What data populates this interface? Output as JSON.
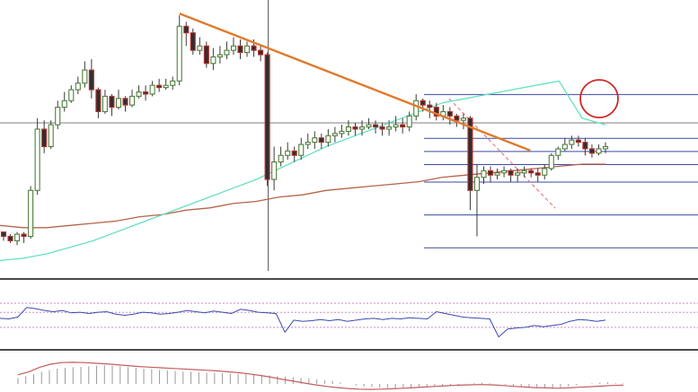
{
  "chart_data": [
    {
      "type": "candlestick",
      "panel": "price",
      "title": "",
      "xlabel": "",
      "ylabel": "",
      "grid": false,
      "ylim": [
        0,
        100
      ],
      "colors": {
        "candle_up": "#4f7f3b",
        "candle_down": "#b8312f",
        "candle_body_border": "#2d2d2d",
        "trendline": "#e07b2e",
        "fib_lines": "#3a4aa0",
        "ma_fast": "#66e0c2",
        "ma_slow": "#b5654a",
        "crosshair": "#555555",
        "circle_marker": "#d02828",
        "dashed_diag": "#e06a6a"
      },
      "candles": [
        [
          19,
          17,
          15,
          19
        ],
        [
          17,
          15,
          14,
          18
        ],
        [
          15,
          18,
          13,
          19
        ],
        [
          18,
          17,
          14,
          19
        ],
        [
          17,
          38,
          16,
          40
        ],
        [
          38,
          66,
          36,
          71
        ],
        [
          66,
          58,
          55,
          70
        ],
        [
          58,
          68,
          57,
          70
        ],
        [
          68,
          76,
          66,
          79
        ],
        [
          76,
          79,
          74,
          83
        ],
        [
          79,
          84,
          78,
          86
        ],
        [
          84,
          87,
          82,
          90
        ],
        [
          87,
          93,
          85,
          97
        ],
        [
          93,
          84,
          80,
          98
        ],
        [
          84,
          74,
          71,
          85
        ],
        [
          74,
          81,
          73,
          84
        ],
        [
          81,
          76,
          72,
          82
        ],
        [
          76,
          80,
          75,
          84
        ],
        [
          80,
          77,
          74,
          81
        ],
        [
          77,
          81,
          76,
          84
        ],
        [
          81,
          83,
          80,
          86
        ],
        [
          83,
          82,
          79,
          86
        ],
        [
          82,
          86,
          81,
          88
        ],
        [
          86,
          85,
          83,
          89
        ],
        [
          85,
          86,
          84,
          89
        ],
        [
          86,
          88,
          84,
          90
        ],
        [
          88,
          113,
          86,
          118
        ],
        [
          113,
          110,
          104,
          115
        ],
        [
          110,
          102,
          100,
          112
        ],
        [
          102,
          104,
          100,
          108
        ],
        [
          104,
          96,
          94,
          106
        ],
        [
          96,
          99,
          93,
          103
        ],
        [
          99,
          100,
          96,
          104
        ],
        [
          100,
          102,
          98,
          106
        ],
        [
          102,
          104,
          100,
          108
        ],
        [
          104,
          101,
          98,
          107
        ],
        [
          101,
          104,
          99,
          106
        ],
        [
          104,
          102,
          99,
          107
        ],
        [
          102,
          100,
          97,
          104
        ],
        [
          100,
          43,
          40,
          101
        ],
        [
          43,
          51,
          38,
          58
        ],
        [
          51,
          54,
          49,
          58
        ],
        [
          54,
          56,
          52,
          60
        ],
        [
          56,
          54,
          51,
          58
        ],
        [
          54,
          59,
          52,
          62
        ],
        [
          59,
          60,
          57,
          64
        ],
        [
          60,
          62,
          57,
          65
        ],
        [
          62,
          60,
          57,
          64
        ],
        [
          60,
          63,
          58,
          66
        ],
        [
          63,
          64,
          60,
          67
        ],
        [
          64,
          65,
          62,
          68
        ],
        [
          65,
          67,
          63,
          70
        ],
        [
          67,
          66,
          63,
          69
        ],
        [
          66,
          67,
          63,
          70
        ],
        [
          67,
          68,
          66,
          71
        ],
        [
          68,
          67,
          64,
          70
        ],
        [
          67,
          66,
          63,
          69
        ],
        [
          66,
          67,
          63,
          70
        ],
        [
          67,
          68,
          65,
          72
        ],
        [
          68,
          67,
          64,
          71
        ],
        [
          67,
          72,
          65,
          74
        ],
        [
          72,
          79,
          70,
          82
        ],
        [
          79,
          77,
          74,
          80
        ],
        [
          77,
          76,
          71,
          79
        ],
        [
          76,
          72,
          70,
          78
        ],
        [
          72,
          74,
          70,
          77
        ],
        [
          74,
          72,
          68,
          76
        ],
        [
          72,
          70,
          67,
          73
        ],
        [
          70,
          71,
          66,
          73
        ],
        [
          71,
          38,
          29,
          72
        ],
        [
          38,
          44,
          17,
          50
        ],
        [
          44,
          47,
          41,
          49
        ],
        [
          47,
          45,
          42,
          49
        ],
        [
          45,
          46,
          43,
          48
        ],
        [
          46,
          47,
          44,
          49
        ],
        [
          47,
          45,
          42,
          48
        ],
        [
          45,
          46,
          42,
          48
        ],
        [
          46,
          47,
          44,
          49
        ],
        [
          47,
          46,
          44,
          48
        ],
        [
          46,
          45,
          42,
          48
        ],
        [
          45,
          48,
          43,
          50
        ],
        [
          48,
          54,
          47,
          55
        ],
        [
          54,
          57,
          52,
          58
        ],
        [
          57,
          59,
          56,
          62
        ],
        [
          59,
          61,
          57,
          63
        ],
        [
          61,
          60,
          58,
          63
        ],
        [
          60,
          57,
          54,
          62
        ],
        [
          57,
          55,
          53,
          59
        ],
        [
          55,
          57,
          54,
          59
        ],
        [
          57,
          58,
          55,
          60
        ]
      ],
      "moving_average_fast": [
        6,
        7,
        9,
        12,
        15,
        19,
        23,
        27,
        31,
        35,
        39,
        43,
        48,
        53,
        58,
        62,
        66,
        70,
        74,
        78,
        80,
        82,
        84,
        86,
        88,
        71,
        68
      ],
      "moving_average_slow": [
        22,
        21,
        21,
        22,
        23,
        24,
        26,
        27,
        29,
        30,
        32,
        33,
        35,
        36,
        38,
        39,
        40,
        41,
        42,
        44,
        45,
        46,
        47,
        48,
        49,
        50,
        50
      ],
      "trendline": {
        "start": {
          "index": 26,
          "value": 118
        },
        "end": {
          "index": 80,
          "value": 62
        }
      },
      "fib_levels": [
        82,
        62,
        56,
        50,
        42,
        27,
        12
      ],
      "marker_circle": {
        "index": 80,
        "value": 62
      }
    },
    {
      "type": "line",
      "panel": "rsi",
      "title": "",
      "ylim": [
        0,
        100
      ],
      "reference_levels": [
        70,
        55,
        30
      ],
      "values": [
        45,
        44,
        47,
        63,
        61,
        58,
        56,
        58,
        54,
        55,
        53,
        55,
        56,
        52,
        50,
        52,
        55,
        54,
        52,
        53,
        55,
        58,
        56,
        54,
        57,
        55,
        53,
        60,
        58,
        55,
        54,
        53,
        22,
        42,
        40,
        41,
        43,
        41,
        43,
        40,
        42,
        44,
        45,
        43,
        45,
        44,
        46,
        45,
        44,
        56,
        53,
        50,
        47,
        46,
        45,
        44,
        14,
        27,
        29,
        30,
        33,
        31,
        33,
        35,
        40,
        43,
        42,
        40,
        42
      ]
    },
    {
      "type": "bar",
      "panel": "macd",
      "title": "",
      "ylim": [
        -25,
        100
      ],
      "signal_color": "#c45d5d",
      "histogram": [
        20,
        25,
        32,
        40,
        45,
        50,
        53,
        55,
        56,
        58,
        60,
        62,
        60,
        58,
        55,
        53,
        50,
        48,
        46,
        44,
        42,
        40,
        40,
        38,
        37,
        36,
        35,
        34,
        33,
        32,
        31,
        30,
        28,
        26,
        24,
        22,
        20,
        18,
        15,
        12,
        10,
        5,
        0,
        -5,
        -8,
        -10,
        -12,
        -13,
        -14,
        -15,
        -14,
        -12,
        -10,
        -8,
        -6,
        -4,
        -2,
        0,
        2,
        4,
        2,
        0,
        -3,
        -6,
        -8,
        -10,
        -12,
        -14,
        -15,
        -12,
        -8,
        -4,
        0,
        2,
        4,
        5,
        3,
        2
      ],
      "signal": [
        30,
        40,
        55,
        65,
        70,
        71,
        70,
        68,
        66,
        63,
        60,
        57,
        55,
        53,
        51,
        49,
        47,
        45,
        43,
        40,
        37,
        33,
        28,
        22,
        15,
        9,
        3,
        -3,
        -8,
        -12,
        -15,
        -17,
        -18,
        -17,
        -16,
        -14,
        -12,
        -10,
        -8,
        -6,
        -4,
        -3,
        -2,
        -3,
        -5,
        -8,
        -10,
        -12,
        -13,
        -14,
        -13,
        -11,
        -9,
        -7,
        -5,
        -4
      ]
    }
  ]
}
